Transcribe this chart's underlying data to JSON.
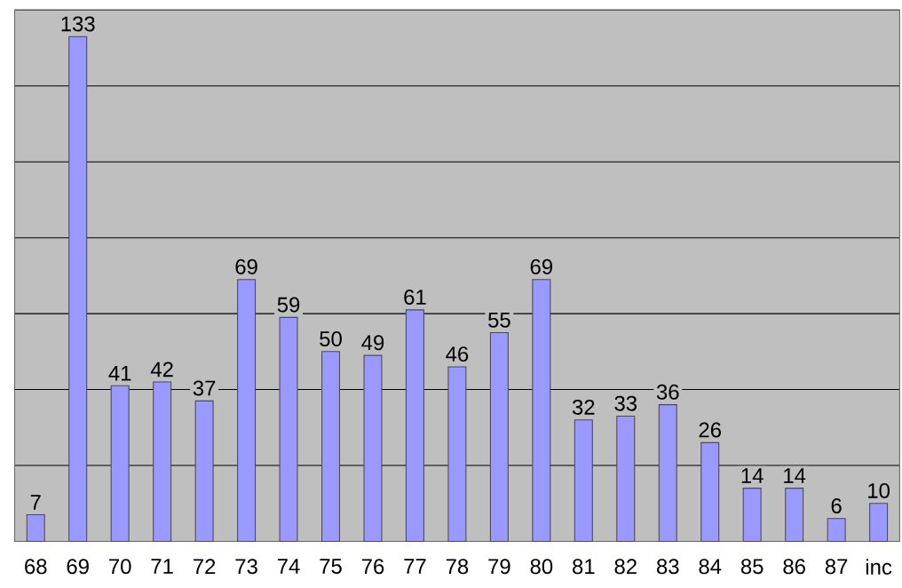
{
  "chart_data": {
    "type": "bar",
    "categories": [
      "68",
      "69",
      "70",
      "71",
      "72",
      "73",
      "74",
      "75",
      "76",
      "77",
      "78",
      "79",
      "80",
      "81",
      "82",
      "83",
      "84",
      "85",
      "86",
      "87",
      "inc"
    ],
    "values": [
      7,
      133,
      41,
      42,
      37,
      69,
      59,
      50,
      49,
      61,
      46,
      55,
      69,
      32,
      33,
      36,
      26,
      14,
      14,
      6,
      10
    ],
    "color": "#9999ff",
    "data_labels": true,
    "grid": "y",
    "tick_labels": "x",
    "ylim": [
      0,
      140
    ],
    "yticks": [
      {
        "value": 0,
        "label": null
      },
      {
        "value": 20,
        "label": null
      },
      {
        "value": 40,
        "label": null
      },
      {
        "value": 60,
        "label": null
      },
      {
        "value": 80,
        "label": null
      },
      {
        "value": 100,
        "label": null
      },
      {
        "value": 120,
        "label": null
      },
      {
        "value": 140,
        "label": null
      }
    ]
  }
}
